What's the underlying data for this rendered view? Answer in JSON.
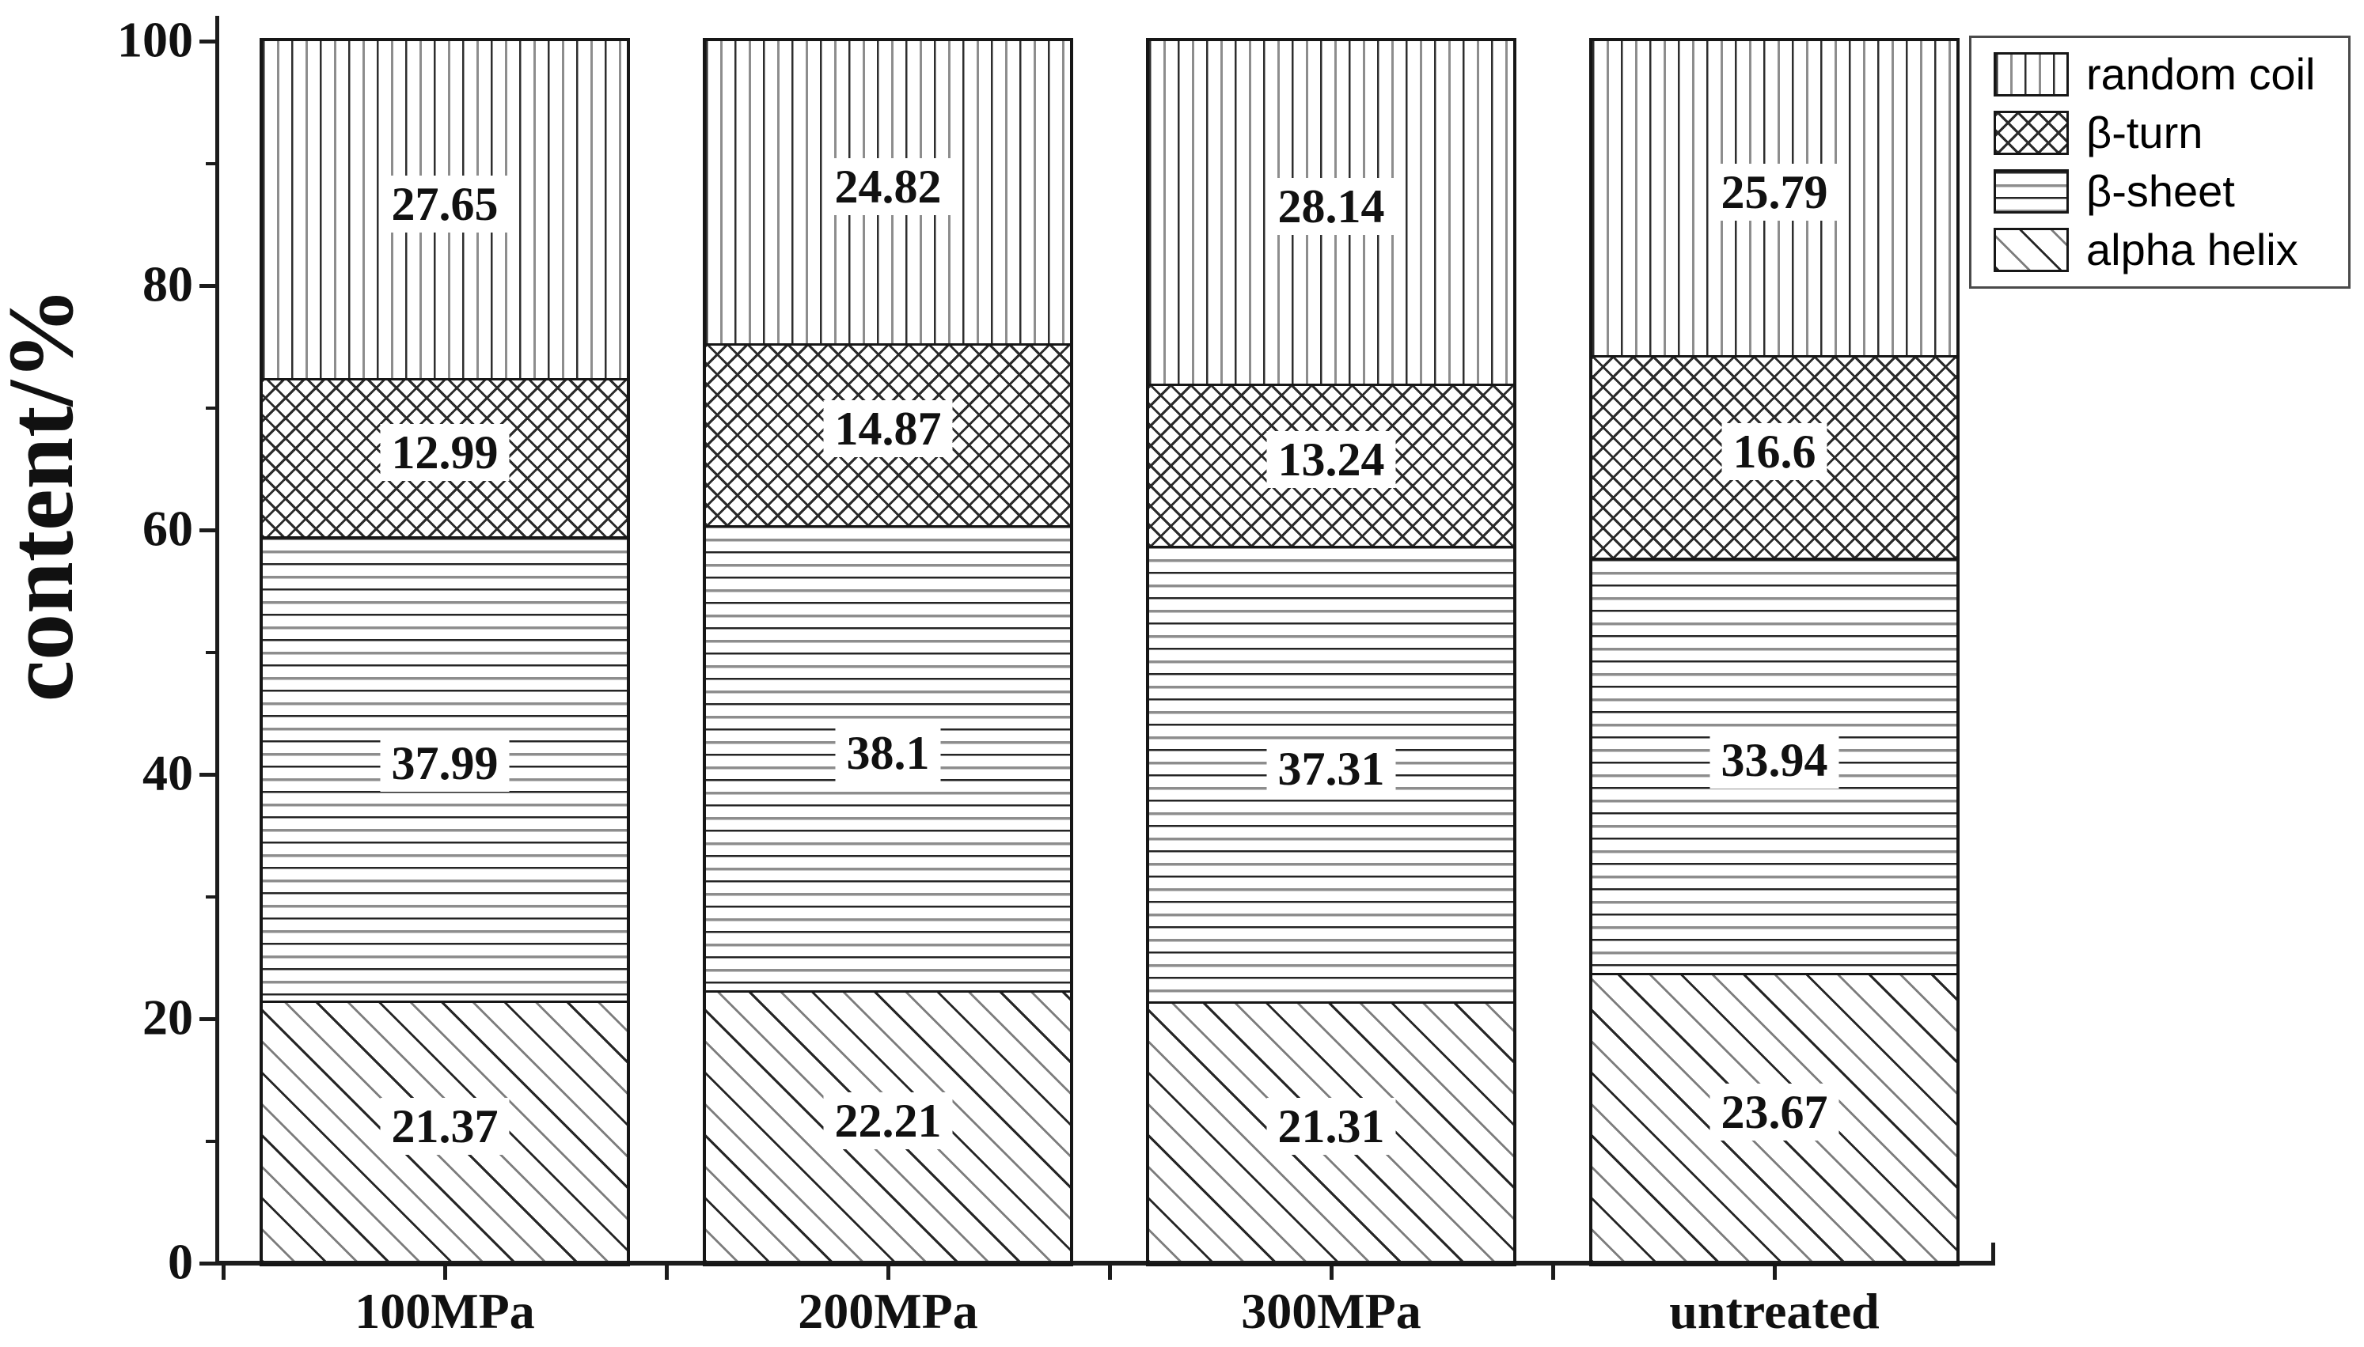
{
  "chart_data": {
    "type": "bar",
    "subtype": "stacked-vertical",
    "title": "",
    "xlabel": "",
    "ylabel": "content/%",
    "ylim": [
      0,
      100
    ],
    "yticks": [
      0,
      20,
      40,
      60,
      80,
      100
    ],
    "ytick_labels": [
      "0",
      "20",
      "40",
      "60",
      "80",
      "100"
    ],
    "minor_ytick_values": [
      10,
      30,
      50,
      70,
      90
    ],
    "grid": false,
    "categories": [
      "100MPa",
      "200MPa",
      "300MPa",
      "untreated"
    ],
    "series_bottom_to_top": [
      {
        "name": "alpha helix",
        "pattern": "diagonal-hatch",
        "values": [
          21.37,
          22.21,
          21.31,
          23.67
        ],
        "labels": [
          "21.37",
          "22.21",
          "21.31",
          "23.67"
        ]
      },
      {
        "name": "β-sheet",
        "pattern": "horizontal-lines",
        "values": [
          37.99,
          38.1,
          37.31,
          33.94
        ],
        "labels": [
          "37.99",
          "38.1",
          "37.31",
          "33.94"
        ]
      },
      {
        "name": "β-turn",
        "pattern": "crosshatch",
        "values": [
          12.99,
          14.87,
          13.24,
          16.6
        ],
        "labels": [
          "12.99",
          "14.87",
          "13.24",
          "16.6"
        ]
      },
      {
        "name": "random coil",
        "pattern": "vertical-lines",
        "values": [
          27.65,
          24.82,
          28.14,
          25.79
        ],
        "labels": [
          "27.65",
          "24.82",
          "28.14",
          "25.79"
        ]
      }
    ],
    "legend": {
      "position": "top-right",
      "entries_top_to_bottom": [
        "random coil",
        "β-turn",
        "β-sheet",
        "alpha helix"
      ]
    },
    "colors": {
      "background": "#ffffff",
      "ink": "#161616",
      "hatch_gray": "#8d8d8d",
      "value_label_background": "#ffffff"
    }
  }
}
